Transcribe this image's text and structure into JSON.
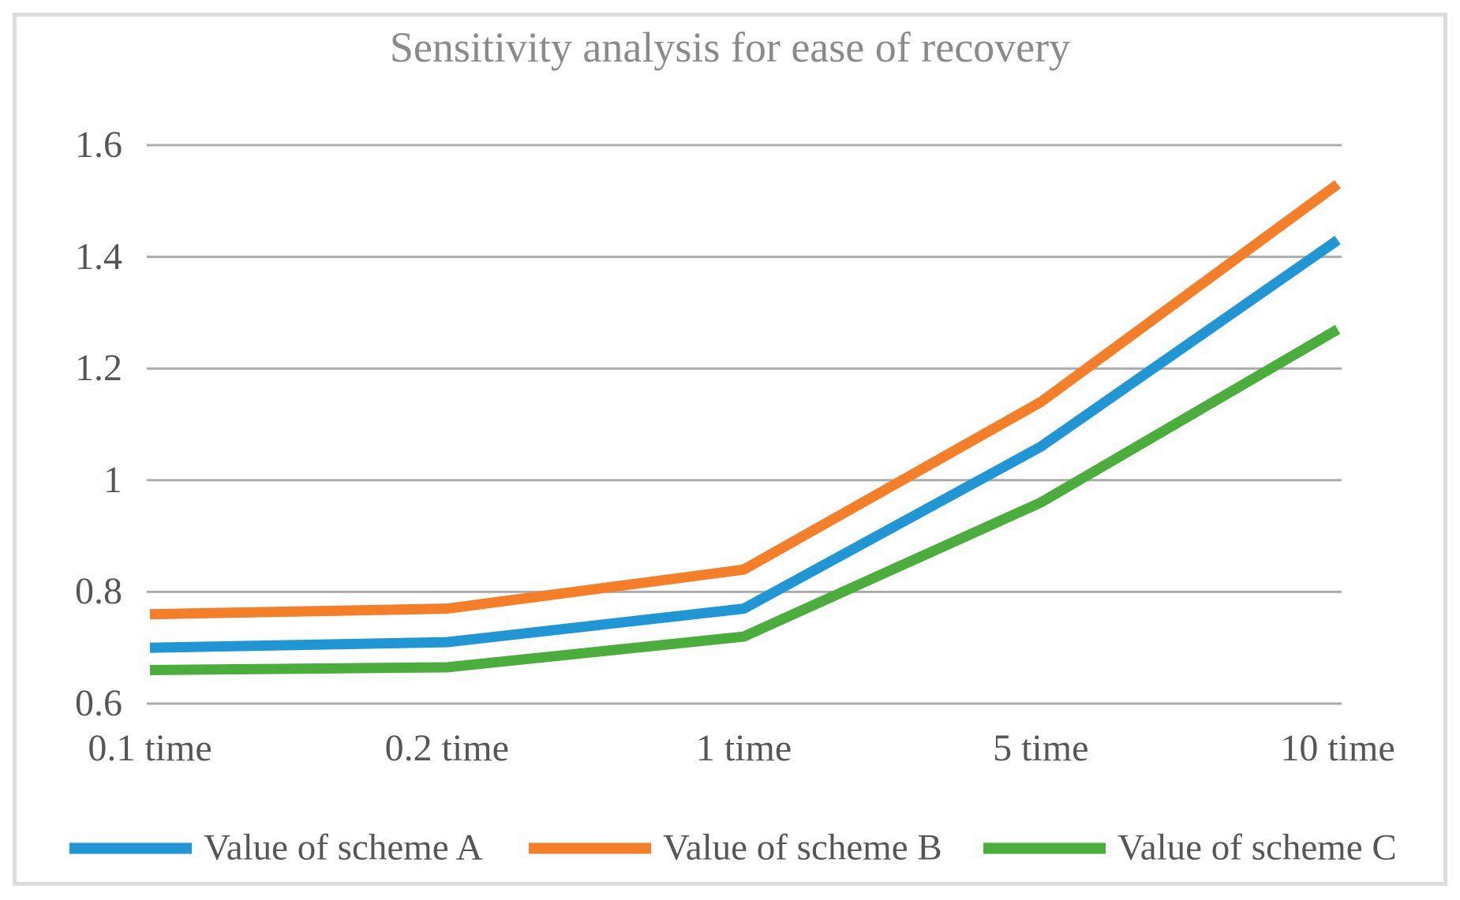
{
  "chart": {
    "title": "Sensitivity analysis for ease of recovery",
    "colors": {
      "grid": "#ababab",
      "axis_text": "#565656",
      "title_text": "#8a8a8a",
      "frame_border": "#dcdcdc",
      "background": "#ffffff"
    }
  },
  "chart_data": {
    "type": "line",
    "title": "Sensitivity analysis for ease of recovery",
    "categories": [
      "0.1 time",
      "0.2 time",
      "1 time",
      "5 time",
      "10 time"
    ],
    "xlabel": "",
    "ylabel": "",
    "ylim": [
      0.6,
      1.6
    ],
    "yticks": [
      "1.6",
      "1.4",
      "1.2",
      "1",
      "0.8",
      "0.6"
    ],
    "grid": true,
    "legend_position": "bottom",
    "series": [
      {
        "name": "Value of scheme A",
        "color": "#2196d5",
        "values": [
          0.7,
          0.71,
          0.77,
          1.06,
          1.43
        ]
      },
      {
        "name": "Value of scheme B",
        "color": "#f57e28",
        "values": [
          0.76,
          0.77,
          0.84,
          1.14,
          1.53
        ]
      },
      {
        "name": "Value of scheme C",
        "color": "#4bad3c",
        "values": [
          0.66,
          0.665,
          0.72,
          0.96,
          1.27
        ]
      }
    ]
  }
}
